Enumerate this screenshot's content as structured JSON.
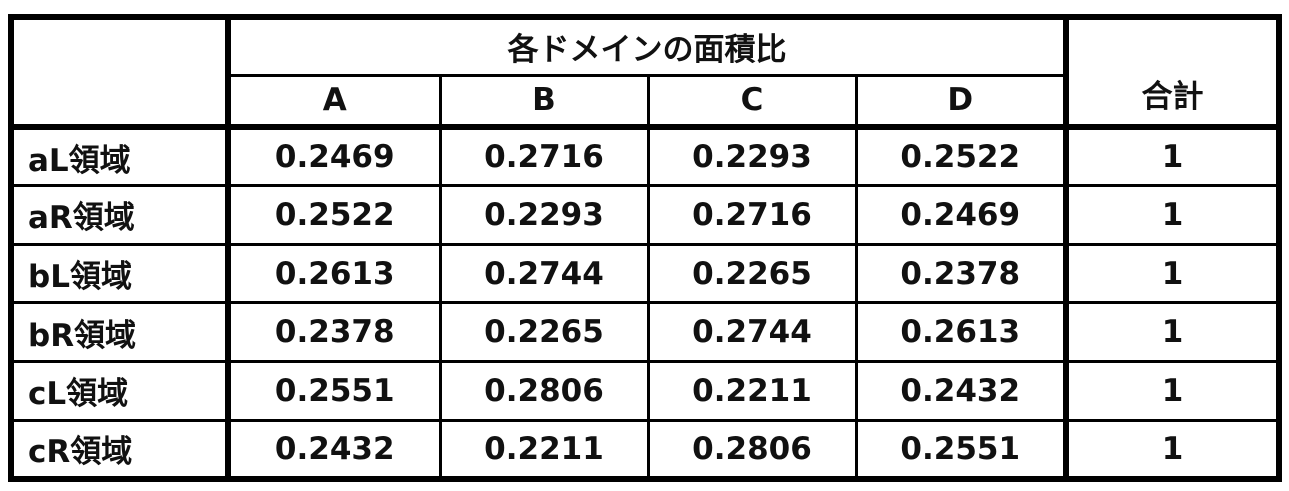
{
  "table": {
    "group_header": "各ドメインの面積比",
    "total_header": "合計",
    "columns": [
      "A",
      "B",
      "C",
      "D"
    ],
    "rows": [
      {
        "label": "aL領域",
        "values": [
          "0.2469",
          "0.2716",
          "0.2293",
          "0.2522"
        ],
        "total": "1"
      },
      {
        "label": "aR領域",
        "values": [
          "0.2522",
          "0.2293",
          "0.2716",
          "0.2469"
        ],
        "total": "1"
      },
      {
        "label": "bL領域",
        "values": [
          "0.2613",
          "0.2744",
          "0.2265",
          "0.2378"
        ],
        "total": "1"
      },
      {
        "label": "bR領域",
        "values": [
          "0.2378",
          "0.2265",
          "0.2744",
          "0.2613"
        ],
        "total": "1"
      },
      {
        "label": "cL領域",
        "values": [
          "0.2551",
          "0.2806",
          "0.2211",
          "0.2432"
        ],
        "total": "1"
      },
      {
        "label": "cR領域",
        "values": [
          "0.2432",
          "0.2211",
          "0.2806",
          "0.2551"
        ],
        "total": "1"
      }
    ]
  }
}
